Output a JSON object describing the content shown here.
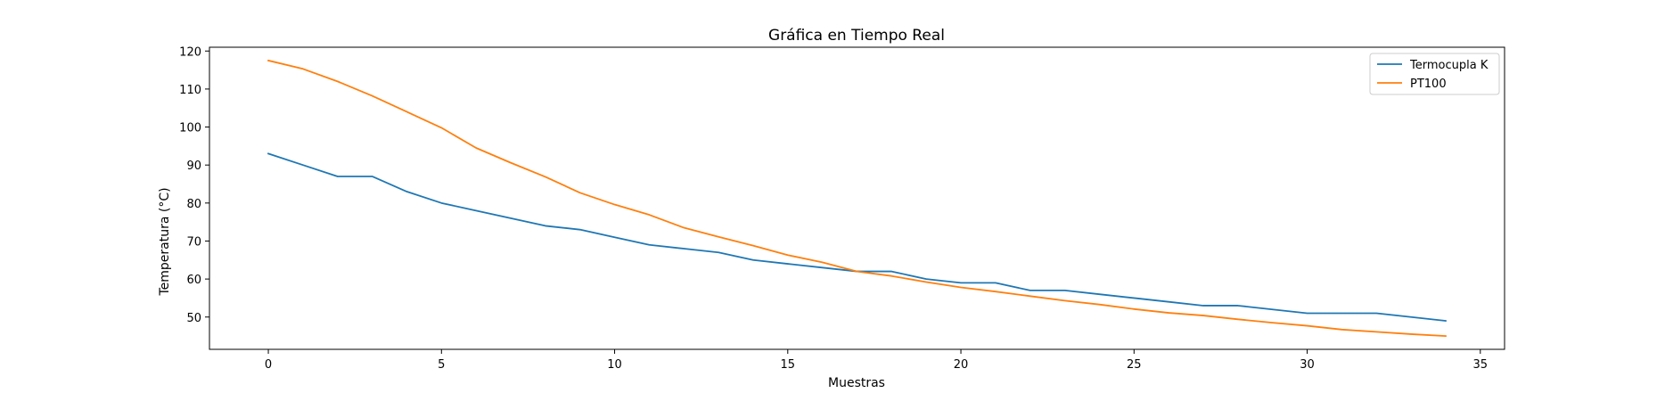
{
  "chart_data": {
    "type": "line",
    "title": "Gráfica en Tiempo Real",
    "xlabel": "Muestras",
    "ylabel": "Temperatura (°C)",
    "xlim": [
      -1.7,
      35.7
    ],
    "ylim": [
      41.5,
      121
    ],
    "xticks": [
      0,
      5,
      10,
      15,
      20,
      25,
      30,
      35
    ],
    "yticks": [
      50,
      60,
      70,
      80,
      90,
      100,
      110,
      120
    ],
    "grid": false,
    "legend_position": "top-right",
    "x": [
      0,
      1,
      2,
      3,
      4,
      5,
      6,
      7,
      8,
      9,
      10,
      11,
      12,
      13,
      14,
      15,
      16,
      17,
      18,
      19,
      20,
      21,
      22,
      23,
      24,
      25,
      26,
      27,
      28,
      29,
      30,
      31,
      32,
      33,
      34
    ],
    "series": [
      {
        "name": "Termocupla K",
        "color": "#1f77b4",
        "values": [
          93,
          90,
          87,
          87,
          83,
          80,
          78,
          76,
          74,
          73,
          71,
          69,
          68,
          67,
          65,
          64,
          63,
          62,
          62,
          60,
          59,
          59,
          57,
          57,
          56,
          55,
          54,
          53,
          53,
          52,
          51,
          51,
          51,
          50,
          49
        ]
      },
      {
        "name": "PT100",
        "color": "#ff7f0e",
        "values": [
          117.5,
          115.3,
          112.0,
          108.2,
          104.0,
          99.8,
          94.5,
          90.6,
          86.9,
          82.7,
          79.6,
          76.9,
          73.5,
          71.1,
          68.8,
          66.3,
          64.4,
          62.0,
          60.8,
          59.2,
          57.8,
          56.7,
          55.5,
          54.3,
          53.3,
          52.1,
          51.1,
          50.4,
          49.4,
          48.5,
          47.7,
          46.7,
          46.1,
          45.5,
          45.0
        ]
      }
    ]
  }
}
